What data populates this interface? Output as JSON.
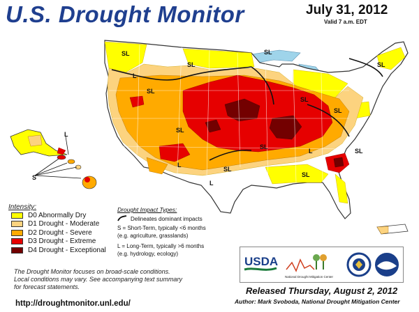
{
  "header": {
    "title": "U.S. Drought Monitor",
    "date": "July 31, 2012",
    "valid": "Valid 7 a.m. EDT"
  },
  "colors": {
    "d0": "#ffff00",
    "d1": "#fcd37f",
    "d2": "#ffaa00",
    "d3": "#e60000",
    "d4": "#730000",
    "water": "#9fd4ea",
    "land": "#ffffff"
  },
  "legend": {
    "title": "Intensity:",
    "items": [
      {
        "label": "D0 Abnormally Dry",
        "color": "#ffff00"
      },
      {
        "label": "D1 Drought - Moderate",
        "color": "#fcd37f"
      },
      {
        "label": "D2 Drought - Severe",
        "color": "#ffaa00"
      },
      {
        "label": "D3 Drought - Extreme",
        "color": "#e60000"
      },
      {
        "label": "D4 Drought - Exceptional",
        "color": "#730000"
      }
    ]
  },
  "impact": {
    "title": "Drought Impact Types:",
    "delineates": "Delineates dominant impacts",
    "short_term": "S = Short-Term, typically <6 months",
    "short_term_eg": "(e.g. agriculture, grasslands)",
    "long_term": "L = Long-Term, typically >6 months",
    "long_term_eg": "(e.g. hydrology, ecology)"
  },
  "map_labels": {
    "sl": "SL",
    "l": "L",
    "s": "S"
  },
  "footnote": {
    "line1": "The Drought Monitor focuses on broad-scale conditions.",
    "line2": "Local conditions may vary. See accompanying text summary",
    "line3": "for forecast statements."
  },
  "logos": {
    "usda": "USDA",
    "ndmc": "National Drought Mitigation Center"
  },
  "footer": {
    "url": "http://droughtmonitor.unl.edu/",
    "released": "Released Thursday, August 2, 2012",
    "author": "Author: Mark Svoboda, National Drought Mitigation Center"
  }
}
